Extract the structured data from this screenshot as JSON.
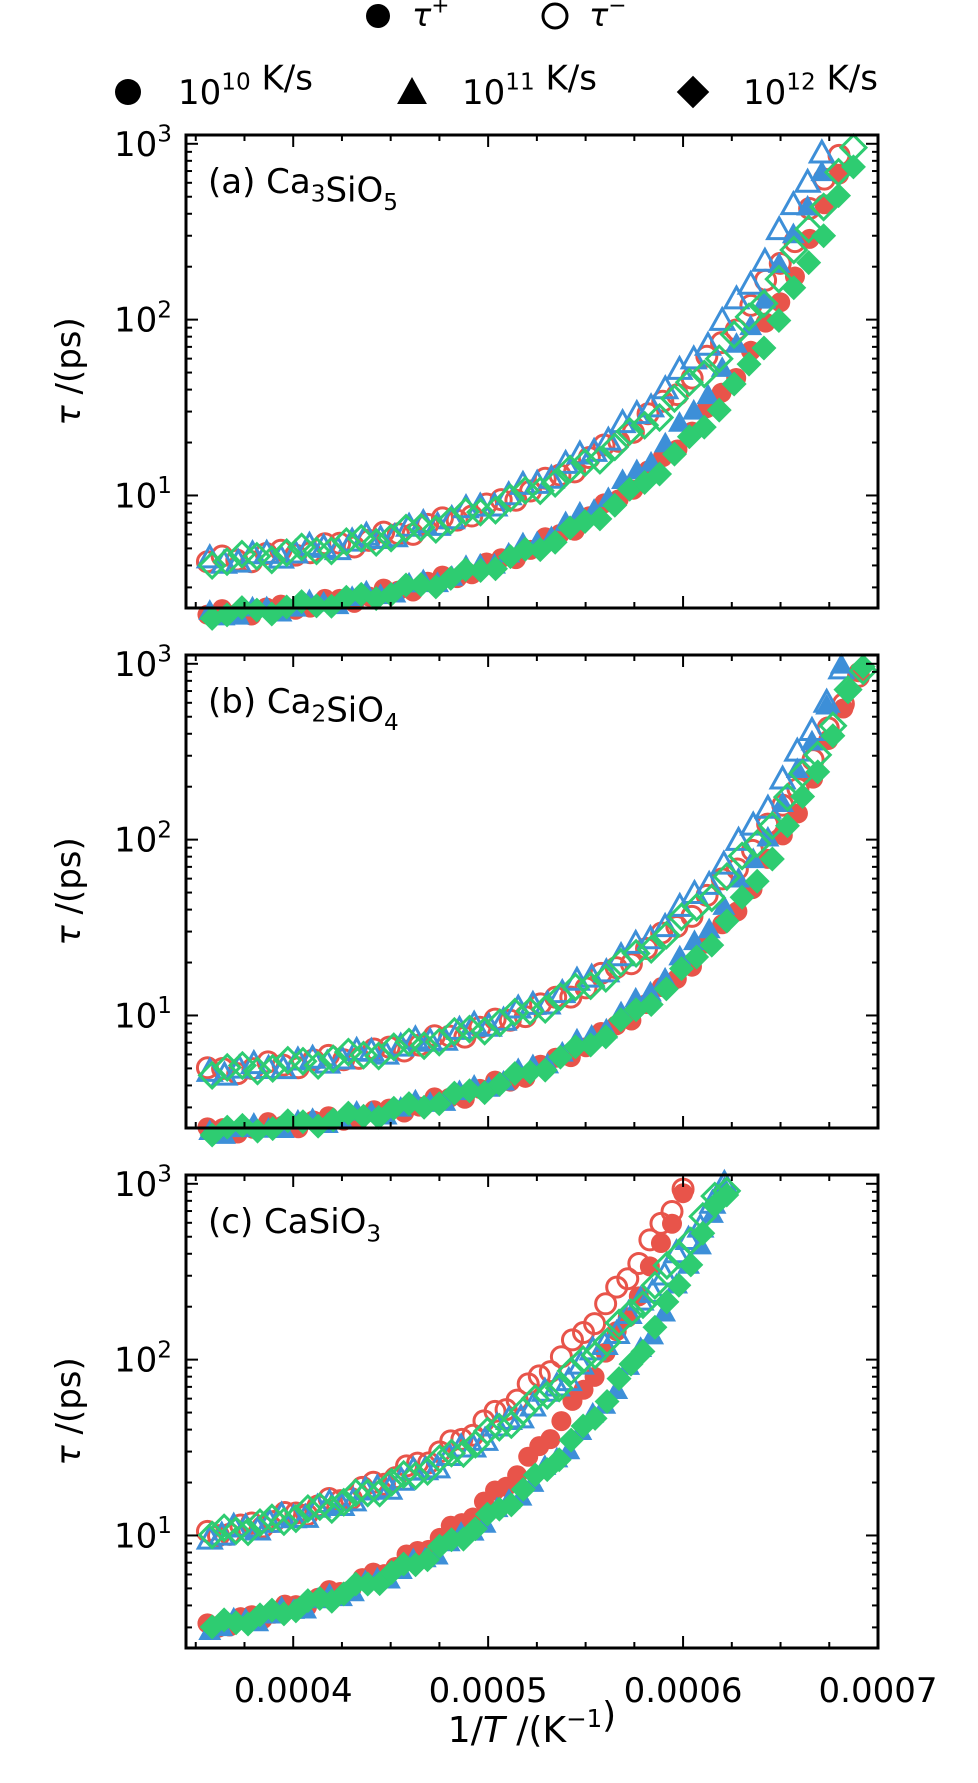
{
  "chart_data": {
    "type": "scatter",
    "legend_top": [
      {
        "marker": "filled-circle",
        "label_base": "τ",
        "label_sup": "+"
      },
      {
        "marker": "open-circle",
        "label_base": "τ",
        "label_sup": "−"
      }
    ],
    "legend_rates": [
      {
        "marker": "circle",
        "base": "10",
        "exp": "10",
        "unit": " K/s",
        "color": "#e8544a"
      },
      {
        "marker": "triangle",
        "base": "10",
        "exp": "11",
        "unit": " K/s",
        "color": "#3d8fd8"
      },
      {
        "marker": "diamond",
        "base": "10",
        "exp": "12",
        "unit": " K/s",
        "color": "#2ecc71"
      }
    ],
    "xlabel": {
      "pre": "1/",
      "ital": "T",
      "mid": " /(K",
      "sup": "−1",
      "post": ")"
    },
    "ylabel": {
      "ital": "τ",
      "rest": " /(ps)"
    },
    "xlim": [
      0.000345,
      0.0007
    ],
    "ylim_log": [
      0.36,
      3.05
    ],
    "xticks": [
      {
        "value": 0.0004,
        "label": "0.0004"
      },
      {
        "value": 0.0005,
        "label": "0.0005"
      },
      {
        "value": 0.0006,
        "label": "0.0006"
      },
      {
        "value": 0.0007,
        "label": "0.0007"
      }
    ],
    "yticks": [
      {
        "exp": 1,
        "base": "10",
        "sup": "1"
      },
      {
        "exp": 2,
        "base": "10",
        "sup": "2"
      },
      {
        "exp": 3,
        "base": "10",
        "sup": "3"
      }
    ],
    "panels": [
      {
        "label_pre": "(a) Ca",
        "label_parts": [
          [
            "Ca",
            ""
          ],
          [
            "3",
            "sub"
          ],
          [
            "SiO",
            ""
          ],
          [
            "5",
            "sub"
          ]
        ],
        "label": "(a) Ca₃SiO₅",
        "x_end": [
          0.00068,
          0.00067,
          0.000685
        ],
        "tau_plus": {
          "y0": 2.1,
          "y1": 700,
          "k": 3.6
        },
        "tau_minus": {
          "y0": 4.2,
          "y1": 900,
          "k": 3.2
        }
      },
      {
        "label": "(b) Ca₂SiO₄",
        "label_parts": [
          [
            "(b) Ca",
            ""
          ],
          [
            "2",
            "sub"
          ],
          [
            "SiO",
            ""
          ],
          [
            "4",
            "sub"
          ]
        ],
        "x_end": [
          0.00069,
          0.00068,
          0.00069
        ],
        "tau_plus": {
          "y0": 2.2,
          "y1": 950,
          "k": 3.8
        },
        "tau_minus": {
          "y0": 4.8,
          "y1": 900,
          "k": 3.4
        }
      },
      {
        "label": "(c) CaSiO₃",
        "label_parts": [
          [
            "(c) CaSiO",
            ""
          ],
          [
            "3",
            "sub"
          ]
        ],
        "x_end": [
          0.0006,
          0.00062,
          0.00062
        ],
        "tau_plus": {
          "y0": 3.0,
          "y1": 900,
          "k": 2.6
        },
        "tau_minus": {
          "y0": 10.0,
          "y1": 950,
          "k": 2.2
        }
      }
    ],
    "x_start": 0.000356,
    "colors": {
      "rate_1e10": "#e8544a",
      "rate_1e11": "#3d8fd8",
      "rate_1e12": "#2ecc71"
    }
  }
}
